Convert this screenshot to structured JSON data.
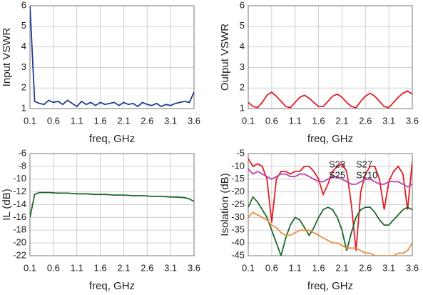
{
  "chart_data": [
    {
      "type": "line",
      "ylabel": "Input VSWR",
      "xlabel": "freq, GHz",
      "label_color": "#1f3a93",
      "x": [
        0.1,
        0.2,
        0.3,
        0.4,
        0.5,
        0.6,
        0.7,
        0.8,
        0.9,
        1.0,
        1.1,
        1.2,
        1.3,
        1.4,
        1.5,
        1.6,
        1.7,
        1.8,
        1.9,
        2.0,
        2.1,
        2.2,
        2.3,
        2.4,
        2.5,
        2.6,
        2.7,
        2.8,
        2.9,
        3.0,
        3.1,
        3.2,
        3.3,
        3.4,
        3.5,
        3.6
      ],
      "values": [
        6.0,
        1.35,
        1.25,
        1.2,
        1.4,
        1.3,
        1.35,
        1.2,
        1.4,
        1.25,
        1.1,
        1.35,
        1.2,
        1.3,
        1.15,
        1.3,
        1.2,
        1.25,
        1.3,
        1.15,
        1.3,
        1.2,
        1.25,
        1.1,
        1.3,
        1.2,
        1.15,
        1.25,
        1.1,
        1.2,
        1.15,
        1.25,
        1.3,
        1.35,
        1.3,
        1.8
      ],
      "color": "#1f3a93",
      "xlim": [
        0.1,
        3.6
      ],
      "xticks": [
        0.1,
        0.6,
        1.1,
        1.6,
        2.1,
        2.6,
        3.1,
        3.6
      ],
      "ylim": [
        1,
        6
      ],
      "yticks": [
        1,
        2,
        3,
        4,
        5,
        6
      ],
      "grid": true
    },
    {
      "type": "line",
      "ylabel": "Output VSWR",
      "xlabel": "freq, GHz",
      "label_color": "#e01e26",
      "x": [
        0.1,
        0.2,
        0.3,
        0.4,
        0.5,
        0.6,
        0.7,
        0.8,
        0.9,
        1.0,
        1.1,
        1.2,
        1.3,
        1.4,
        1.5,
        1.6,
        1.7,
        1.8,
        1.9,
        2.0,
        2.1,
        2.2,
        2.3,
        2.4,
        2.5,
        2.6,
        2.7,
        2.8,
        2.9,
        3.0,
        3.1,
        3.2,
        3.3,
        3.4,
        3.5,
        3.6
      ],
      "values": [
        1.3,
        1.1,
        1.05,
        1.3,
        1.65,
        1.8,
        1.6,
        1.35,
        1.1,
        1.05,
        1.3,
        1.55,
        1.65,
        1.5,
        1.3,
        1.1,
        1.1,
        1.35,
        1.6,
        1.7,
        1.55,
        1.3,
        1.1,
        1.05,
        1.35,
        1.6,
        1.75,
        1.6,
        1.35,
        1.1,
        1.05,
        1.3,
        1.55,
        1.75,
        1.85,
        1.7
      ],
      "color": "#e01e26",
      "xlim": [
        0.1,
        3.6
      ],
      "xticks": [
        0.1,
        0.6,
        1.1,
        1.6,
        2.1,
        2.6,
        3.1,
        3.6
      ],
      "ylim": [
        1,
        6
      ],
      "yticks": [
        1,
        2,
        3,
        4,
        5,
        6
      ],
      "grid": true
    },
    {
      "type": "line",
      "ylabel": "IL (dB)",
      "xlabel": "freq, GHz",
      "label_color": "#1a6b2a",
      "x": [
        0.1,
        0.2,
        0.3,
        0.4,
        0.5,
        0.6,
        0.7,
        0.8,
        0.9,
        1.0,
        1.1,
        1.2,
        1.3,
        1.4,
        1.5,
        1.6,
        1.7,
        1.8,
        1.9,
        2.0,
        2.1,
        2.2,
        2.3,
        2.4,
        2.5,
        2.6,
        2.7,
        2.8,
        2.9,
        3.0,
        3.1,
        3.2,
        3.3,
        3.4,
        3.5,
        3.6
      ],
      "values": [
        -16,
        -12.4,
        -12.1,
        -12.1,
        -12.1,
        -12.15,
        -12.2,
        -12.2,
        -12.2,
        -12.25,
        -12.3,
        -12.3,
        -12.3,
        -12.35,
        -12.4,
        -12.4,
        -12.4,
        -12.45,
        -12.5,
        -12.5,
        -12.5,
        -12.55,
        -12.6,
        -12.6,
        -12.6,
        -12.65,
        -12.7,
        -12.7,
        -12.7,
        -12.75,
        -12.8,
        -12.8,
        -12.85,
        -12.9,
        -13.1,
        -13.5
      ],
      "color": "#1a6b2a",
      "xlim": [
        0.1,
        3.6
      ],
      "xticks": [
        0.1,
        0.6,
        1.1,
        1.6,
        2.1,
        2.6,
        3.1,
        3.6
      ],
      "ylim": [
        -22,
        -6
      ],
      "yticks": [
        -6,
        -8,
        -10,
        -12,
        -14,
        -16,
        -18,
        -20,
        -22
      ],
      "grid": true
    },
    {
      "type": "line",
      "ylabel": "Isolation (dB)",
      "xlabel": "freq, GHz",
      "label_color": "#111111",
      "x": [
        0.1,
        0.2,
        0.3,
        0.4,
        0.5,
        0.6,
        0.7,
        0.8,
        0.9,
        1.0,
        1.1,
        1.2,
        1.3,
        1.4,
        1.5,
        1.6,
        1.7,
        1.8,
        1.9,
        2.0,
        2.1,
        2.2,
        2.3,
        2.4,
        2.5,
        2.6,
        2.7,
        2.8,
        2.9,
        3.0,
        3.1,
        3.2,
        3.3,
        3.4,
        3.5,
        3.6
      ],
      "series": [
        {
          "name": "S23",
          "color": "#e01e26",
          "values": [
            -7,
            -10,
            -9,
            -10,
            -15,
            -32,
            -15,
            -12,
            -12,
            -13,
            -12,
            -12,
            -10,
            -10,
            -12,
            -15,
            -21,
            -17,
            -12,
            -10,
            -9,
            -12,
            -25,
            -43,
            -20,
            -13,
            -10,
            -10,
            -15,
            -27,
            -16,
            -12,
            -10,
            -13,
            -27,
            -8
          ]
        },
        {
          "name": "S27",
          "color": "#1a6b2a",
          "values": [
            -26,
            -22,
            -24,
            -27,
            -30,
            -35,
            -40,
            -45,
            -38,
            -33,
            -30,
            -31,
            -34,
            -37,
            -34,
            -30,
            -27,
            -26,
            -27,
            -30,
            -35,
            -43,
            -36,
            -30,
            -27,
            -26,
            -26,
            -28,
            -31,
            -33,
            -33,
            -31,
            -29,
            -27,
            -26,
            -27
          ]
        },
        {
          "name": "S25",
          "color": "#c03fb0",
          "values": [
            -11,
            -13,
            -12,
            -13,
            -14,
            -15,
            -14,
            -13,
            -13,
            -14,
            -14,
            -13,
            -13,
            -14,
            -15,
            -16,
            -16,
            -15,
            -14,
            -14,
            -15,
            -16,
            -17,
            -17,
            -16,
            -15,
            -15,
            -16,
            -17,
            -17,
            -16,
            -16,
            -16,
            -17,
            -18,
            -17
          ]
        },
        {
          "name": "S210",
          "color": "#f08a3c",
          "values": [
            -30,
            -28,
            -29,
            -30,
            -31,
            -33,
            -34,
            -36,
            -37,
            -37,
            -36,
            -35,
            -35,
            -35,
            -36,
            -37,
            -38,
            -39,
            -40,
            -40,
            -41,
            -42,
            -42,
            -42,
            -43,
            -44,
            -44,
            -45,
            -45,
            -45,
            -45,
            -45,
            -44,
            -44,
            -43,
            -40
          ]
        }
      ],
      "xlim": [
        0.1,
        3.6
      ],
      "xticks": [
        0.1,
        0.6,
        1.1,
        1.6,
        2.1,
        2.6,
        3.1,
        3.6
      ],
      "ylim": [
        -45,
        -5
      ],
      "yticks": [
        -5,
        -10,
        -15,
        -20,
        -25,
        -30,
        -35,
        -40,
        -45
      ],
      "grid": true
    }
  ]
}
